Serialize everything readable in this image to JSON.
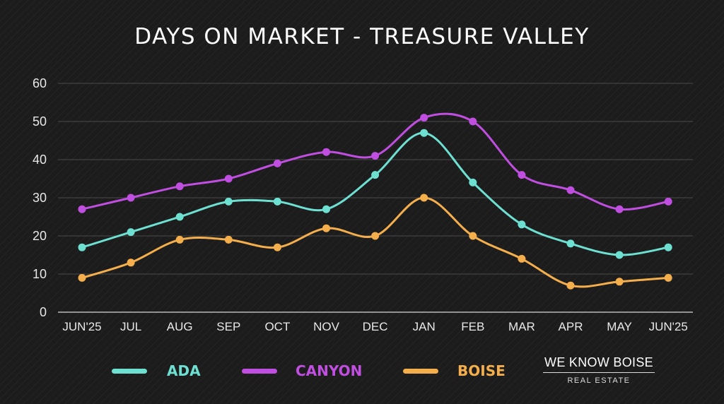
{
  "chart_data": {
    "type": "line",
    "title": "DAYS ON MARKET - TREASURE VALLEY",
    "categories": [
      "JUN'25",
      "JUL",
      "AUG",
      "SEP",
      "OCT",
      "NOV",
      "DEC",
      "JAN",
      "FEB",
      "MAR",
      "APR",
      "MAY",
      "JUN'25"
    ],
    "ylim": [
      0,
      60
    ],
    "yticks": [
      "0",
      "10",
      "20",
      "30",
      "40",
      "50",
      "60"
    ],
    "grid": true,
    "legend": "bottom",
    "series": [
      {
        "name": "ADA",
        "color": "#6ee0d2",
        "values": [
          17,
          21,
          25,
          29,
          29,
          27,
          36,
          47,
          34,
          23,
          18,
          15,
          17
        ]
      },
      {
        "name": "CANYON",
        "color": "#c04ee0",
        "values": [
          27,
          30,
          33,
          35,
          39,
          42,
          41,
          51,
          50,
          36,
          32,
          27,
          29
        ]
      },
      {
        "name": "BOISE",
        "color": "#f5ae4c",
        "values": [
          9,
          13,
          19,
          19,
          17,
          22,
          20,
          30,
          20,
          14,
          7,
          8,
          9
        ]
      }
    ]
  },
  "brand": {
    "name": "WE KNOW BOISE",
    "tagline": "REAL ESTATE"
  }
}
